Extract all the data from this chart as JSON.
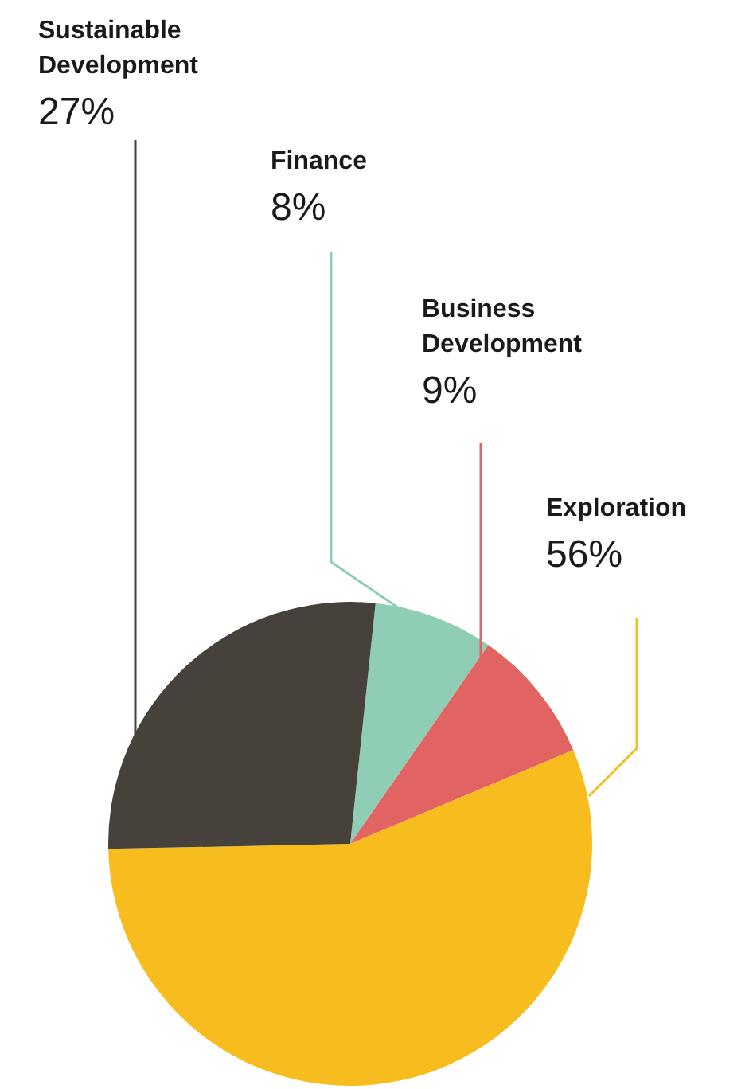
{
  "chart_data": {
    "type": "pie",
    "categories": [
      "Finance",
      "Business Development",
      "Exploration",
      "Sustainable Development"
    ],
    "values": [
      8,
      9,
      56,
      27
    ],
    "value_labels": [
      "8%",
      "9%",
      "56%",
      "27%"
    ],
    "colors": [
      "#90cdb5",
      "#e26462",
      "#f7bd1e",
      "#46413a"
    ],
    "legend": false
  }
}
